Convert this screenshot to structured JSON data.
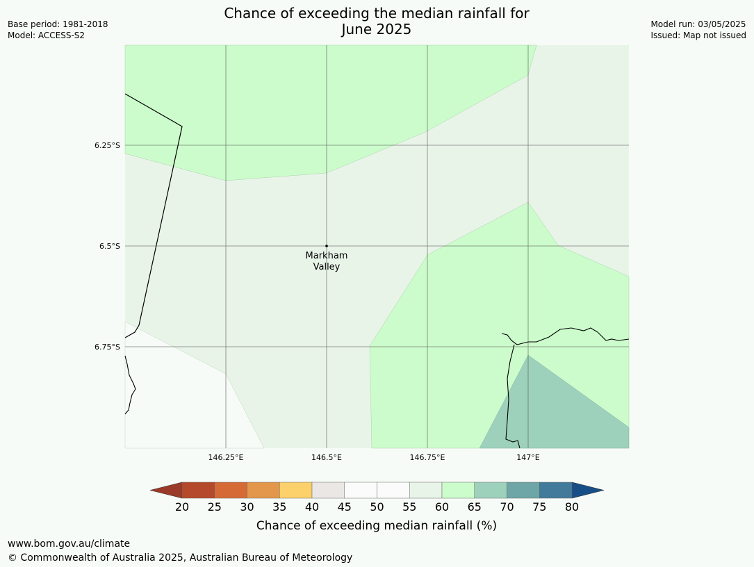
{
  "title": {
    "line1": "Chance of exceeding the median rainfall for",
    "line2": "June 2025"
  },
  "meta_left": {
    "base_period": "Base period: 1981-2018",
    "model": "Model: ACCESS-S2"
  },
  "meta_right": {
    "model_run": "Model run: 03/05/2025",
    "issued": "Issued: Map not issued"
  },
  "map": {
    "lat_labels": [
      "6.25°S",
      "6.5°S",
      "6.75°S"
    ],
    "lon_labels": [
      "146.25°E",
      "146.5°E",
      "146.75°E",
      "147°E"
    ],
    "place": {
      "name_line1": "Markham",
      "name_line2": "Valley"
    }
  },
  "colorbar": {
    "ticks": [
      "20",
      "25",
      "30",
      "35",
      "40",
      "45",
      "50",
      "55",
      "60",
      "65",
      "70",
      "75",
      "80"
    ],
    "colors": [
      "#b5492b",
      "#d56a37",
      "#e3974a",
      "#fcd16b",
      "#ebe7e4",
      "#fbfbfb",
      "#fbfbfb",
      "#e9f4e9",
      "#ccfccc",
      "#9ed1bb",
      "#6ea5a6",
      "#417a9b"
    ],
    "low_extend_color": "#9b3a28",
    "high_extend_color": "#174e87",
    "label": "Chance of exceeding median rainfall (%)"
  },
  "footer": {
    "url": "www.bom.gov.au/climate",
    "copyright": "© Commonwealth of Australia 2025, Australian Bureau of Meteorology"
  }
}
